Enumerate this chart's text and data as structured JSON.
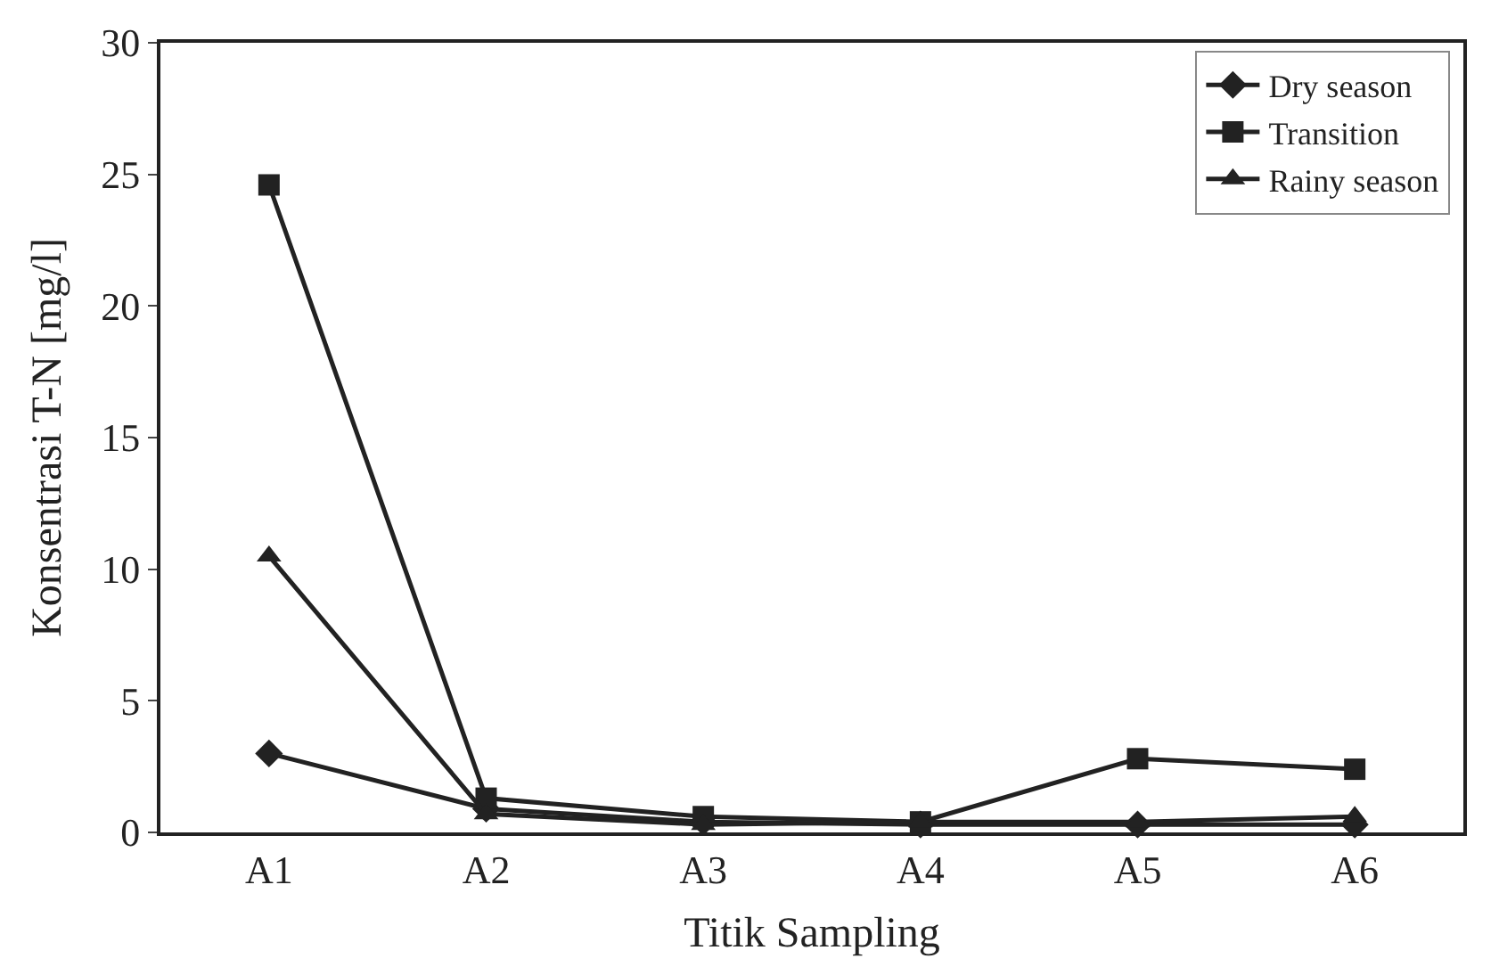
{
  "chart_data": {
    "type": "line",
    "xlabel": "Titik Sampling",
    "ylabel": "Konsentrasi T-N [mg/l]",
    "categories": [
      "A1",
      "A2",
      "A3",
      "A4",
      "A5",
      "A6"
    ],
    "series": [
      {
        "name": "Dry season",
        "color": "#222222",
        "marker": "diamond",
        "values": [
          3.0,
          0.9,
          0.4,
          0.3,
          0.3,
          0.3
        ]
      },
      {
        "name": "Transition",
        "color": "#222222",
        "marker": "square",
        "values": [
          24.6,
          1.3,
          0.6,
          0.4,
          2.8,
          2.4
        ]
      },
      {
        "name": "Rainy season",
        "color": "#222222",
        "marker": "triangle",
        "values": [
          10.5,
          0.7,
          0.3,
          0.4,
          0.4,
          0.6
        ]
      }
    ],
    "ylim": [
      0,
      30
    ],
    "yticks": [
      0,
      5,
      10,
      15,
      20,
      25,
      30
    ],
    "legend": "top right",
    "line_style": "solid"
  }
}
